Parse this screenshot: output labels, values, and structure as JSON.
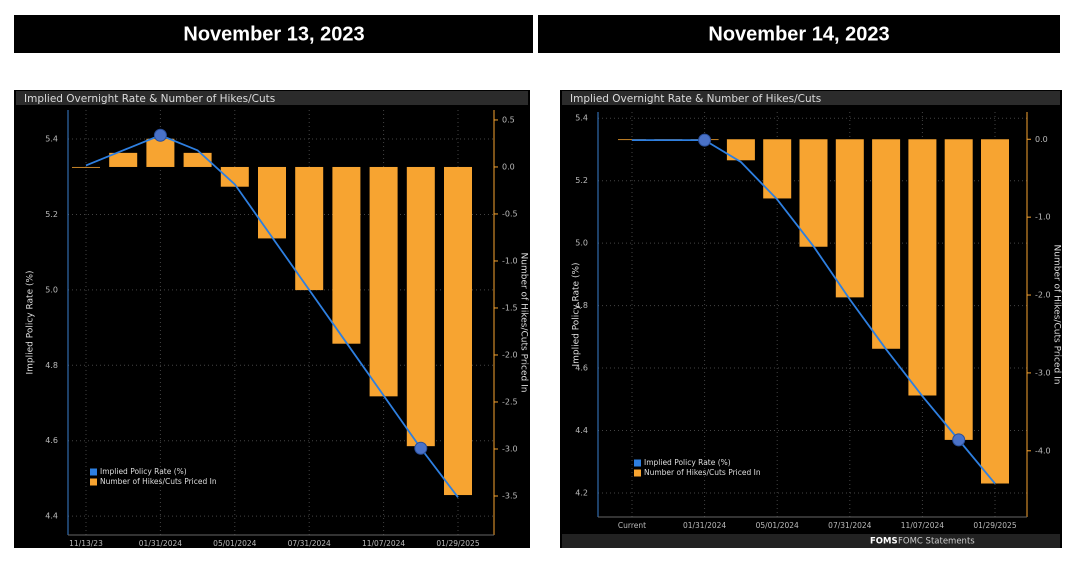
{
  "headers": [
    "November 13, 2023",
    "November 14, 2023"
  ],
  "chart_data": [
    {
      "type": "combo",
      "title": "Implied Overnight Rate & Number of Hikes/Cuts",
      "ylabel": "Implied Policy Rate (%)",
      "y2label": "Number of Hikes/Cuts Priced In",
      "categories": [
        "11/13/23",
        null,
        "01/31/2024",
        null,
        "05/01/2024",
        null,
        "07/31/2024",
        null,
        "11/07/2024",
        null,
        "01/29/2025"
      ],
      "series": [
        {
          "name": "Implied Policy Rate (%)",
          "type": "line",
          "color": "#2e7fe0",
          "markers": [
            2,
            9
          ],
          "values": [
            5.33,
            5.37,
            5.41,
            5.37,
            5.28,
            5.14,
            5.0,
            4.86,
            4.72,
            4.58,
            4.45
          ]
        },
        {
          "name": "Number of Hikes/Cuts Priced In",
          "type": "bar",
          "axis": "y2",
          "color": "#f7a431",
          "values": [
            0.0,
            0.15,
            0.3,
            0.15,
            -0.21,
            -0.76,
            -1.31,
            -1.88,
            -2.44,
            -2.97,
            -3.49
          ]
        }
      ],
      "ylim": [
        4.35,
        5.477
      ],
      "yticks": [
        4.4,
        4.6,
        4.8,
        {
          "value": 5,
          "label": "5.0"
        },
        5.2,
        5.4
      ],
      "y2lim": [
        -3.915,
        0.606
      ],
      "y2ticks": [
        -3.5,
        {
          "value": -3,
          "label": "-3.0"
        },
        -2.5,
        {
          "value": -2,
          "label": "-2.0"
        },
        -1.5,
        {
          "value": -1,
          "label": "-1.0"
        },
        -0.5,
        {
          "value": 0,
          "label": "0.0"
        },
        0.5
      ],
      "grid": true,
      "legend": "lower left"
    },
    {
      "type": "combo",
      "title": "Implied Overnight Rate & Number of Hikes/Cuts",
      "ylabel": "Implied Policy Rate (%)",
      "y2label": "Number of Hikes/Cuts Priced In",
      "categories": [
        "Current",
        null,
        "01/31/2024",
        null,
        "05/01/2024",
        null,
        "07/31/2024",
        null,
        "11/07/2024",
        null,
        "01/29/2025"
      ],
      "series": [
        {
          "name": "Implied Policy Rate (%)",
          "type": "line",
          "color": "#2e7fe0",
          "markers": [
            2,
            9
          ],
          "values": [
            5.33,
            5.33,
            5.33,
            5.26,
            5.14,
            4.99,
            4.82,
            4.66,
            4.51,
            4.37,
            4.23
          ]
        },
        {
          "name": "Number of Hikes/Cuts Priced In",
          "type": "bar",
          "axis": "y2",
          "color": "#f7a431",
          "values": [
            0.0,
            0.0,
            0.0,
            -0.27,
            -0.76,
            -1.38,
            -2.03,
            -2.69,
            -3.29,
            -3.86,
            -4.42
          ]
        }
      ],
      "ylim": [
        4.123,
        5.42
      ],
      "yticks": [
        4.2,
        4.4,
        4.6,
        4.8,
        {
          "value": 5,
          "label": "5.0"
        },
        5.2,
        5.4
      ],
      "y2lim": [
        -4.85,
        0.35
      ],
      "y2ticks": [
        {
          "value": -4,
          "label": "-4.0"
        },
        {
          "value": -3,
          "label": "-3.0"
        },
        {
          "value": -2,
          "label": "-2.0"
        },
        {
          "value": -1,
          "label": "-1.0"
        },
        {
          "value": 0,
          "label": "0.0"
        }
      ],
      "grid": true,
      "legend": "lower left"
    }
  ],
  "footer": {
    "code": "FOMS",
    "text": "FOMC Statements"
  }
}
